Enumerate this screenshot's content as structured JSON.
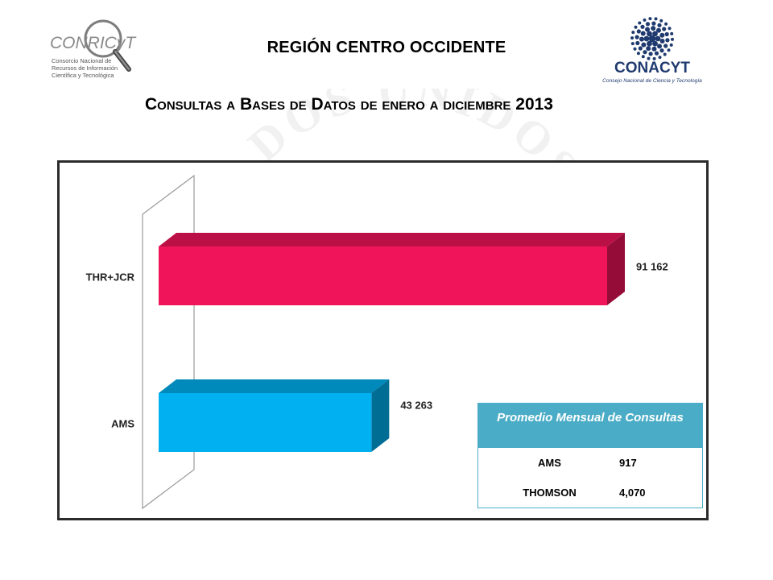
{
  "header": {
    "region_title": "REGIÓN CENTRO OCCIDENTE",
    "subtitle": "Consultas a Bases de Datos de enero a diciembre 2013"
  },
  "logos": {
    "conricyt": {
      "wordmark": "CONRICyT",
      "line1": "Consorcio Nacional de",
      "line2": "Recursos de Información",
      "line3": "Científica y Tecnológica"
    },
    "conacyt": {
      "wordmark": "CONACYT",
      "tagline": "Consejo Nacional de Ciencia y Tecnología"
    },
    "watermark_text": "ESTADOS UNIDOS MEXICANOS"
  },
  "chart_data": {
    "type": "bar",
    "orientation": "horizontal",
    "style": "3d",
    "categories": [
      "THR+JCR",
      "AMS"
    ],
    "values": [
      91162,
      43263
    ],
    "value_labels": [
      "91 162",
      "43 263"
    ],
    "colors": [
      "#f0145a",
      "#00b0f0"
    ],
    "xlim": [
      0,
      100000
    ],
    "grid": false,
    "legend": "none"
  },
  "stats_table": {
    "header": "Promedio  Mensual de Consultas",
    "rows": [
      {
        "label": "AMS",
        "value": "917"
      },
      {
        "label": "THOMSON",
        "value": "4,070"
      }
    ]
  }
}
